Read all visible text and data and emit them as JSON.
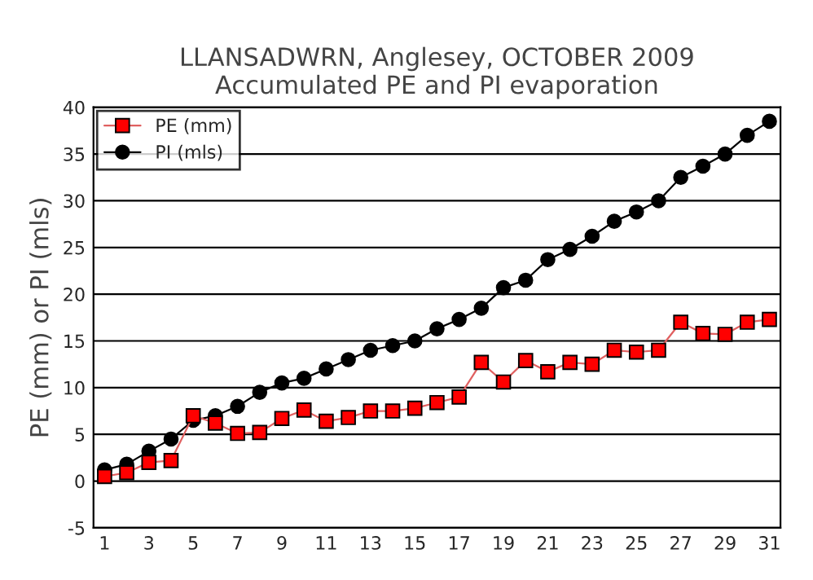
{
  "chart_data": {
    "type": "line",
    "title": "LLANSADWRN, Anglesey, OCTOBER 2009\nAccumulated PE and PI evaporation",
    "ylabel": "PE (mm) or PI (mls)",
    "x": [
      1,
      2,
      3,
      4,
      5,
      6,
      7,
      8,
      9,
      10,
      11,
      12,
      13,
      14,
      15,
      16,
      17,
      18,
      19,
      20,
      21,
      22,
      23,
      24,
      25,
      26,
      27,
      28,
      29,
      30,
      31
    ],
    "xlim": [
      0.5,
      31.5
    ],
    "xticks": [
      1,
      3,
      5,
      7,
      9,
      11,
      13,
      15,
      17,
      19,
      21,
      23,
      25,
      27,
      29,
      31
    ],
    "ylim": [
      -5,
      40
    ],
    "yticks": [
      -5,
      0,
      5,
      10,
      15,
      20,
      25,
      30,
      35,
      40
    ],
    "grid": "y",
    "legend": "top left",
    "series": [
      {
        "name": "PE (mm)",
        "color": "#ff0000",
        "marker": "square",
        "values": [
          0.5,
          0.9,
          2.0,
          2.2,
          7.0,
          6.2,
          5.1,
          5.2,
          6.7,
          7.6,
          6.4,
          6.8,
          7.5,
          7.5,
          7.8,
          8.4,
          9.0,
          12.7,
          10.6,
          12.9,
          11.7,
          12.7,
          12.5,
          14.0,
          13.8,
          14.0,
          17.0,
          15.8,
          15.7,
          17.0,
          17.3
        ]
      },
      {
        "name": "PI (mls)",
        "color": "#000000",
        "marker": "circle",
        "values": [
          1.2,
          1.8,
          3.2,
          4.5,
          6.5,
          7.0,
          8.0,
          9.5,
          10.5,
          11.0,
          12.0,
          13.0,
          14.0,
          14.5,
          15.0,
          16.3,
          17.3,
          18.5,
          20.7,
          21.5,
          23.7,
          24.8,
          26.2,
          27.8,
          28.8,
          30.0,
          32.5,
          33.7,
          35.0,
          37.0,
          38.5
        ]
      }
    ]
  }
}
